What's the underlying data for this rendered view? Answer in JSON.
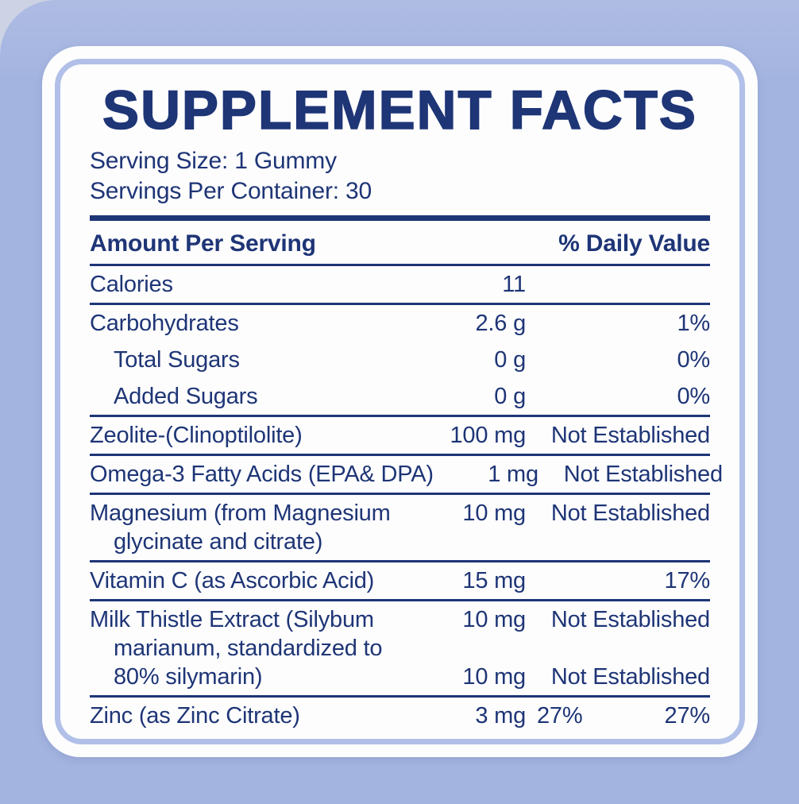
{
  "label": {
    "title": "SUPPLEMENT FACTS",
    "serving_size": "Serving Size: 1 Gummy",
    "servings_per_container": "Servings Per Container: 30",
    "header": {
      "amount_col": "Amount Per Serving",
      "daily_value_col": "% Daily Value"
    },
    "rows": [
      {
        "name": "Calories",
        "amount": "11",
        "dv": ""
      },
      {
        "name": "Carbohydrates",
        "amount": "2.6 g",
        "dv": "1%"
      },
      {
        "name": "Total Sugars",
        "amount": "0 g",
        "dv": "0%"
      },
      {
        "name": "Added Sugars",
        "amount": "0 g",
        "dv": "0%"
      },
      {
        "name": "Zeolite-(Clinoptilolite)",
        "amount": "100 mg",
        "dv": "Not Established"
      },
      {
        "name": "Omega-3 Fatty Acids (EPA& DPA)",
        "amount": "1 mg",
        "dv": "Not Established"
      },
      {
        "name_line1": "Magnesium (from Magnesium",
        "name_line2": "glycinate and citrate)",
        "amount": "10 mg",
        "dv": "Not Established"
      },
      {
        "name": "Vitamin C (as Ascorbic Acid)",
        "amount": "15 mg",
        "dv": "17%"
      },
      {
        "name_line1": "Milk Thistle Extract (Silybum",
        "name_line2": "marianum, standardized to",
        "name_line3": "80% silymarin)",
        "amount1": "10 mg",
        "dv1": "Not Established",
        "amount2": "10 mg",
        "dv2": "Not Established"
      },
      {
        "name": "Zinc (as Zinc Citrate)",
        "amount": "3 mg",
        "dv_left": "27%",
        "dv_right": "27%"
      }
    ],
    "colors": {
      "navy": "#1e3576",
      "background": "#a4b4e0",
      "corner": "#cdd3e4",
      "card": "#fdfdfe",
      "ring": "#b1c0e8"
    }
  }
}
